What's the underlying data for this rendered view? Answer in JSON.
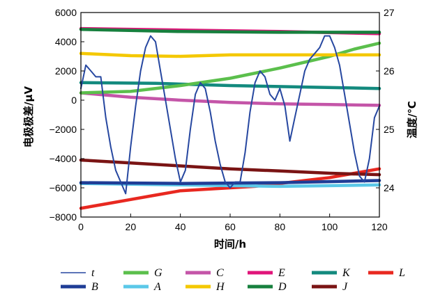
{
  "chart_data": {
    "type": "line",
    "xlabel": "时间/h",
    "ylabel_left": "电极极差/μV",
    "ylabel_right": "温度/℃",
    "xlim": [
      0,
      120
    ],
    "ylim_left": [
      -8000,
      6000
    ],
    "ylim_right": [
      23.5,
      27
    ],
    "x_ticks": [
      "0",
      "20",
      "40",
      "60",
      "80",
      "100",
      "120"
    ],
    "y_left_ticks": [
      "6000",
      "4000",
      "2000",
      "0",
      "−2000",
      "−4000",
      "−6000",
      "−8000"
    ],
    "y_right_ticks": [
      "27",
      "26",
      "25",
      "24"
    ],
    "grid": false,
    "legend_position": "bottom",
    "series": [
      {
        "name": "t",
        "axis": "right",
        "color": "#2647a0",
        "x": [
          0,
          2,
          4,
          6,
          8,
          10,
          12,
          14,
          16,
          18,
          20,
          22,
          24,
          26,
          28,
          30,
          32,
          34,
          36,
          38,
          40,
          42,
          44,
          46,
          48,
          50,
          52,
          54,
          56,
          58,
          60,
          62,
          64,
          66,
          68,
          70,
          72,
          74,
          76,
          78,
          80,
          82,
          84,
          86,
          88,
          90,
          92,
          94,
          96,
          98,
          100,
          102,
          104,
          106,
          108,
          110,
          112,
          114,
          116,
          118,
          120
        ],
        "y": [
          25.7,
          26.1,
          26.0,
          25.9,
          25.9,
          25.2,
          24.7,
          24.3,
          24.1,
          23.9,
          24.7,
          25.4,
          26.0,
          26.4,
          26.6,
          26.5,
          26.0,
          25.5,
          25.0,
          24.5,
          24.1,
          24.3,
          25.0,
          25.6,
          25.8,
          25.7,
          25.3,
          24.8,
          24.4,
          24.1,
          24.0,
          24.1,
          24.1,
          24.6,
          25.3,
          25.8,
          26.0,
          25.9,
          25.6,
          25.5,
          25.7,
          25.4,
          24.8,
          25.2,
          25.6,
          26.0,
          26.2,
          26.3,
          26.4,
          26.6,
          26.6,
          26.4,
          26.1,
          25.6,
          25.1,
          24.6,
          24.2,
          24.1,
          24.5,
          25.2,
          25.4
        ]
      },
      {
        "name": "B",
        "axis": "left",
        "color": "#1f3d96",
        "x": [
          0,
          40,
          80,
          120
        ],
        "y": [
          -5650,
          -5700,
          -5650,
          -5500
        ]
      },
      {
        "name": "G",
        "axis": "left",
        "color": "#5bbf4c",
        "x": [
          0,
          20,
          40,
          60,
          80,
          100,
          110,
          120
        ],
        "y": [
          500,
          600,
          1000,
          1500,
          2200,
          3000,
          3500,
          3900
        ]
      },
      {
        "name": "A",
        "axis": "left",
        "color": "#5bc8e8",
        "x": [
          0,
          40,
          80,
          120
        ],
        "y": [
          -5700,
          -5800,
          -5900,
          -5800
        ]
      },
      {
        "name": "C",
        "axis": "left",
        "color": "#c455a8",
        "x": [
          0,
          20,
          40,
          60,
          80,
          100,
          120
        ],
        "y": [
          500,
          200,
          0,
          -150,
          -250,
          -300,
          -350
        ]
      },
      {
        "name": "H",
        "axis": "left",
        "color": "#f4c800",
        "x": [
          0,
          20,
          40,
          60,
          80,
          100,
          120
        ],
        "y": [
          3200,
          3050,
          3000,
          3100,
          3100,
          3100,
          3100
        ]
      },
      {
        "name": "E",
        "axis": "left",
        "color": "#e0157a",
        "x": [
          0,
          40,
          80,
          120
        ],
        "y": [
          4900,
          4800,
          4700,
          4550
        ]
      },
      {
        "name": "D",
        "axis": "left",
        "color": "#17803e",
        "x": [
          0,
          40,
          80,
          120
        ],
        "y": [
          4850,
          4700,
          4650,
          4650
        ]
      },
      {
        "name": "K",
        "axis": "left",
        "color": "#138a7e",
        "x": [
          0,
          30,
          60,
          90,
          120
        ],
        "y": [
          1200,
          1150,
          1000,
          900,
          800
        ]
      },
      {
        "name": "J",
        "axis": "left",
        "color": "#7a1414",
        "x": [
          0,
          20,
          40,
          60,
          80,
          100,
          120
        ],
        "y": [
          -4100,
          -4300,
          -4500,
          -4700,
          -4850,
          -5000,
          -5100
        ]
      },
      {
        "name": "L",
        "axis": "left",
        "color": "#e82820",
        "x": [
          0,
          10,
          20,
          30,
          40,
          50,
          60,
          70,
          80,
          90,
          100,
          110,
          120
        ],
        "y": [
          -7400,
          -7100,
          -6800,
          -6500,
          -6200,
          -6100,
          -6000,
          -5900,
          -5700,
          -5500,
          -5300,
          -5000,
          -4700
        ]
      }
    ]
  }
}
